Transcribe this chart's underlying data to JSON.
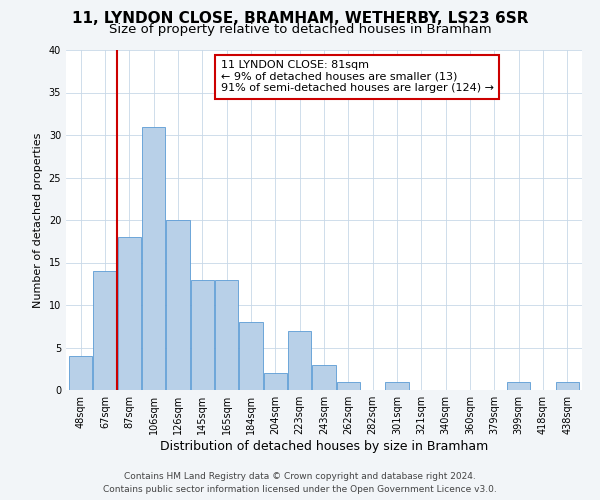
{
  "title": "11, LYNDON CLOSE, BRAMHAM, WETHERBY, LS23 6SR",
  "subtitle": "Size of property relative to detached houses in Bramham",
  "xlabel": "Distribution of detached houses by size in Bramham",
  "ylabel": "Number of detached properties",
  "bar_labels": [
    "48sqm",
    "67sqm",
    "87sqm",
    "106sqm",
    "126sqm",
    "145sqm",
    "165sqm",
    "184sqm",
    "204sqm",
    "223sqm",
    "243sqm",
    "262sqm",
    "282sqm",
    "301sqm",
    "321sqm",
    "340sqm",
    "360sqm",
    "379sqm",
    "399sqm",
    "418sqm",
    "438sqm"
  ],
  "bar_values": [
    4,
    14,
    18,
    31,
    20,
    13,
    13,
    8,
    2,
    7,
    3,
    1,
    0,
    1,
    0,
    0,
    0,
    0,
    1,
    0,
    1
  ],
  "bar_color": "#b8d0e8",
  "bar_edge_color": "#5b9bd5",
  "vline_x": 1.5,
  "vline_color": "#cc0000",
  "ylim": [
    0,
    40
  ],
  "yticks": [
    0,
    5,
    10,
    15,
    20,
    25,
    30,
    35,
    40
  ],
  "annotation_title": "11 LYNDON CLOSE: 81sqm",
  "annotation_line1": "← 9% of detached houses are smaller (13)",
  "annotation_line2": "91% of semi-detached houses are larger (124) →",
  "annotation_box_color": "#ffffff",
  "annotation_box_edge": "#cc0000",
  "footnote1": "Contains HM Land Registry data © Crown copyright and database right 2024.",
  "footnote2": "Contains public sector information licensed under the Open Government Licence v3.0.",
  "bg_color": "#f2f5f8",
  "plot_bg_color": "#ffffff",
  "title_fontsize": 11,
  "subtitle_fontsize": 9.5,
  "xlabel_fontsize": 9,
  "ylabel_fontsize": 8,
  "tick_fontsize": 7,
  "annotation_fontsize": 8,
  "footnote_fontsize": 6.5
}
